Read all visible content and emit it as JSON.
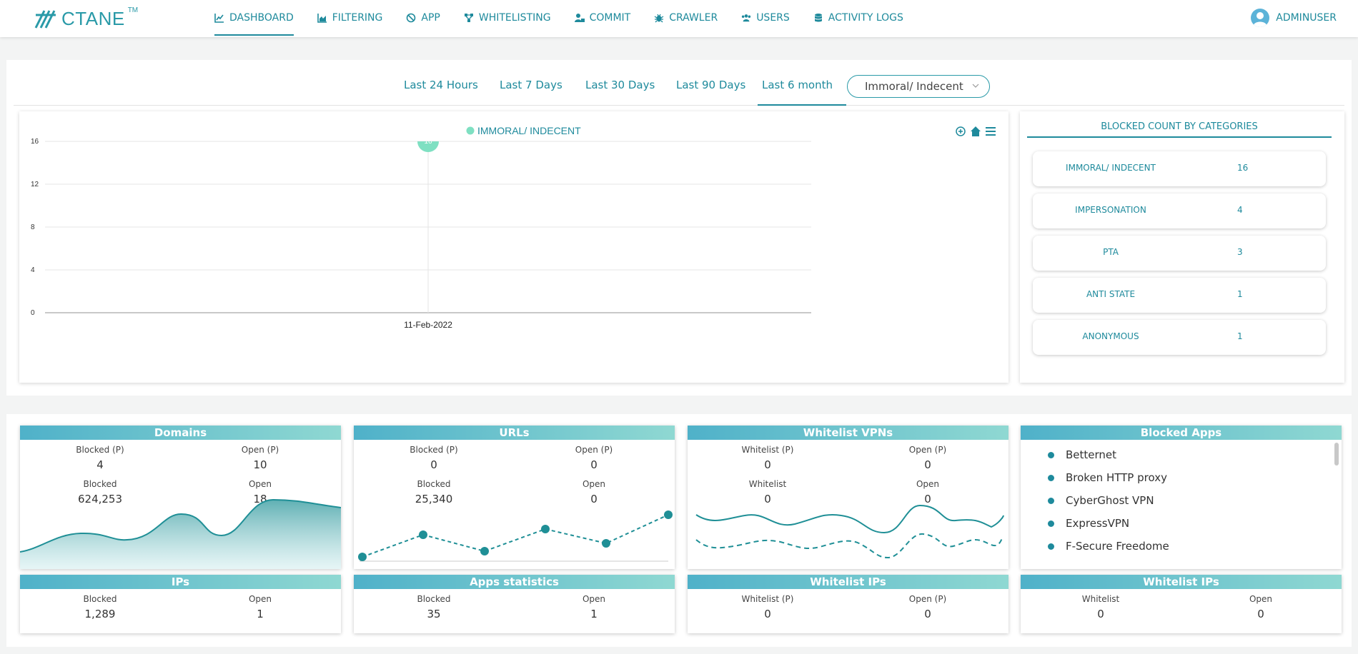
{
  "brand": {
    "name": "CTANE",
    "tm": "TM"
  },
  "nav": {
    "items": [
      {
        "label": "DASHBOARD",
        "icon": "chart-line-icon"
      },
      {
        "label": "FILTERING",
        "icon": "chart-area-icon"
      },
      {
        "label": "APP",
        "icon": "ban-icon"
      },
      {
        "label": "WHITELISTING",
        "icon": "share-nodes-icon"
      },
      {
        "label": "COMMIT",
        "icon": "user-lock-icon"
      },
      {
        "label": "CRAWLER",
        "icon": "bug-icon"
      },
      {
        "label": "USERS",
        "icon": "users-icon"
      },
      {
        "label": "ACTIVITY LOGS",
        "icon": "database-icon"
      }
    ],
    "active": "DASHBOARD",
    "user": "ADMINUSER"
  },
  "filters": {
    "tabs": [
      "Last 24 Hours",
      "Last 7 Days",
      "Last 30 Days",
      "Last 90 Days",
      "Last 6 month"
    ],
    "active_tab": "Last 6 month",
    "category_select": "Immoral/ Indecent"
  },
  "chart_data": {
    "type": "scatter",
    "legend": "IMMORAL/ INDECENT",
    "categories": [
      "11-Feb-2022"
    ],
    "values": [
      16
    ],
    "point_label": "16",
    "yticks": [
      "16",
      "12",
      "8",
      "4",
      "0"
    ],
    "ylim": [
      0,
      16
    ],
    "grid": true,
    "color": "#7fe0c2",
    "toolbar_icons": [
      "zoom-in-icon",
      "home-icon",
      "menu-icon"
    ]
  },
  "categories_panel": {
    "title": "BLOCKED COUNT BY CATEGORIES",
    "rows": [
      {
        "name": "IMMORAL/ INDECENT",
        "count": "16"
      },
      {
        "name": "IMPERSONATION",
        "count": "4"
      },
      {
        "name": "PTA",
        "count": "3"
      },
      {
        "name": "ANTI STATE",
        "count": "1"
      },
      {
        "name": "ANONYMOUS",
        "count": "1"
      }
    ]
  },
  "cards": {
    "domains": {
      "title": "Domains",
      "blocked_p_label": "Blocked (P)",
      "blocked_p": "4",
      "open_p_label": "Open (P)",
      "open_p": "10",
      "blocked_label": "Blocked",
      "blocked": "624,253",
      "open_label": "Open",
      "open": "18"
    },
    "urls": {
      "title": "URLs",
      "blocked_p_label": "Blocked (P)",
      "blocked_p": "0",
      "open_p_label": "Open (P)",
      "open_p": "0",
      "blocked_label": "Blocked",
      "blocked": "25,340",
      "open_label": "Open",
      "open": "0"
    },
    "vpns": {
      "title": "Whitelist VPNs",
      "whitelist_p_label": "Whitelist (P)",
      "whitelist_p": "0",
      "open_p_label": "Open (P)",
      "open_p": "0",
      "whitelist_label": "Whitelist",
      "whitelist": "0",
      "open_label": "Open",
      "open": "0"
    },
    "apps": {
      "title": "Blocked Apps",
      "items": [
        "Betternet",
        "Broken HTTP proxy",
        "CyberGhost VPN",
        "ExpressVPN",
        "F-Secure Freedome"
      ]
    },
    "ips": {
      "title": "IPs",
      "blocked_label": "Blocked",
      "blocked": "1,289",
      "open_label": "Open",
      "open": "1"
    },
    "apps_stats": {
      "title": "Apps statistics",
      "blocked_label": "Blocked",
      "blocked": "35",
      "open_label": "Open",
      "open": "1"
    },
    "wl_ips_1": {
      "title": "Whitelist IPs",
      "whitelist_p_label": "Whitelist (P)",
      "whitelist_p": "0",
      "open_p_label": "Open (P)",
      "open_p": "0"
    },
    "wl_ips_2": {
      "title": "Whitelist IPs",
      "whitelist_label": "Whitelist",
      "whitelist": "0",
      "open_label": "Open",
      "open": "0"
    }
  },
  "colors": {
    "accent": "#1e8a9c",
    "header_gradient_start": "#4fb1c9",
    "header_gradient_end": "#8fd8d2",
    "chart_point": "#7fe0c2"
  }
}
